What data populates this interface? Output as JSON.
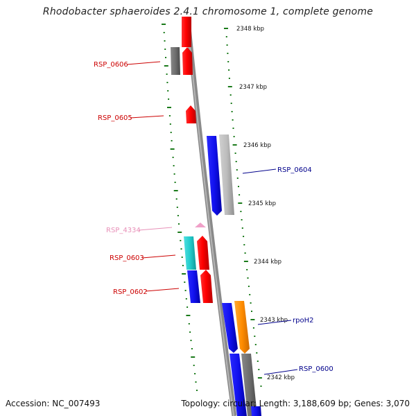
{
  "title": "Rhodobacter sphaeroides 2.4.1 chromosome 1, complete genome",
  "footer": {
    "accession": "Accession: NC_007493",
    "summary": "Topology: circular; Length: 3,188,609 bp; Genes: 3,070"
  },
  "scale": {
    "tick_color": "#1a7a1a",
    "labels": [
      "2348 kbp",
      "2347 kbp",
      "2346 kbp",
      "2345 kbp",
      "2344 kbp",
      "2343 kbp",
      "2342 kbp"
    ]
  },
  "genes": [
    {
      "id": "RSP_0606",
      "color": "#cc0000"
    },
    {
      "id": "RSP_0605",
      "color": "#cc0000"
    },
    {
      "id": "RSP_0604",
      "color": "#00008b"
    },
    {
      "id": "RSP_4334",
      "color": "#e890b8"
    },
    {
      "id": "RSP_0603",
      "color": "#cc0000"
    },
    {
      "id": "RSP_0602",
      "color": "#cc0000"
    },
    {
      "id": "rpoH2",
      "color": "#00008b"
    },
    {
      "id": "RSP_0600",
      "color": "#00008b"
    }
  ],
  "feature_colors": {
    "red": "#ee1111",
    "blue": "#1111ee",
    "gray": "#b8b8b8",
    "dark_gray": "#707070",
    "cyan": "#22cccc",
    "orange": "#ff8c00",
    "pink": "#f0a0c8"
  }
}
